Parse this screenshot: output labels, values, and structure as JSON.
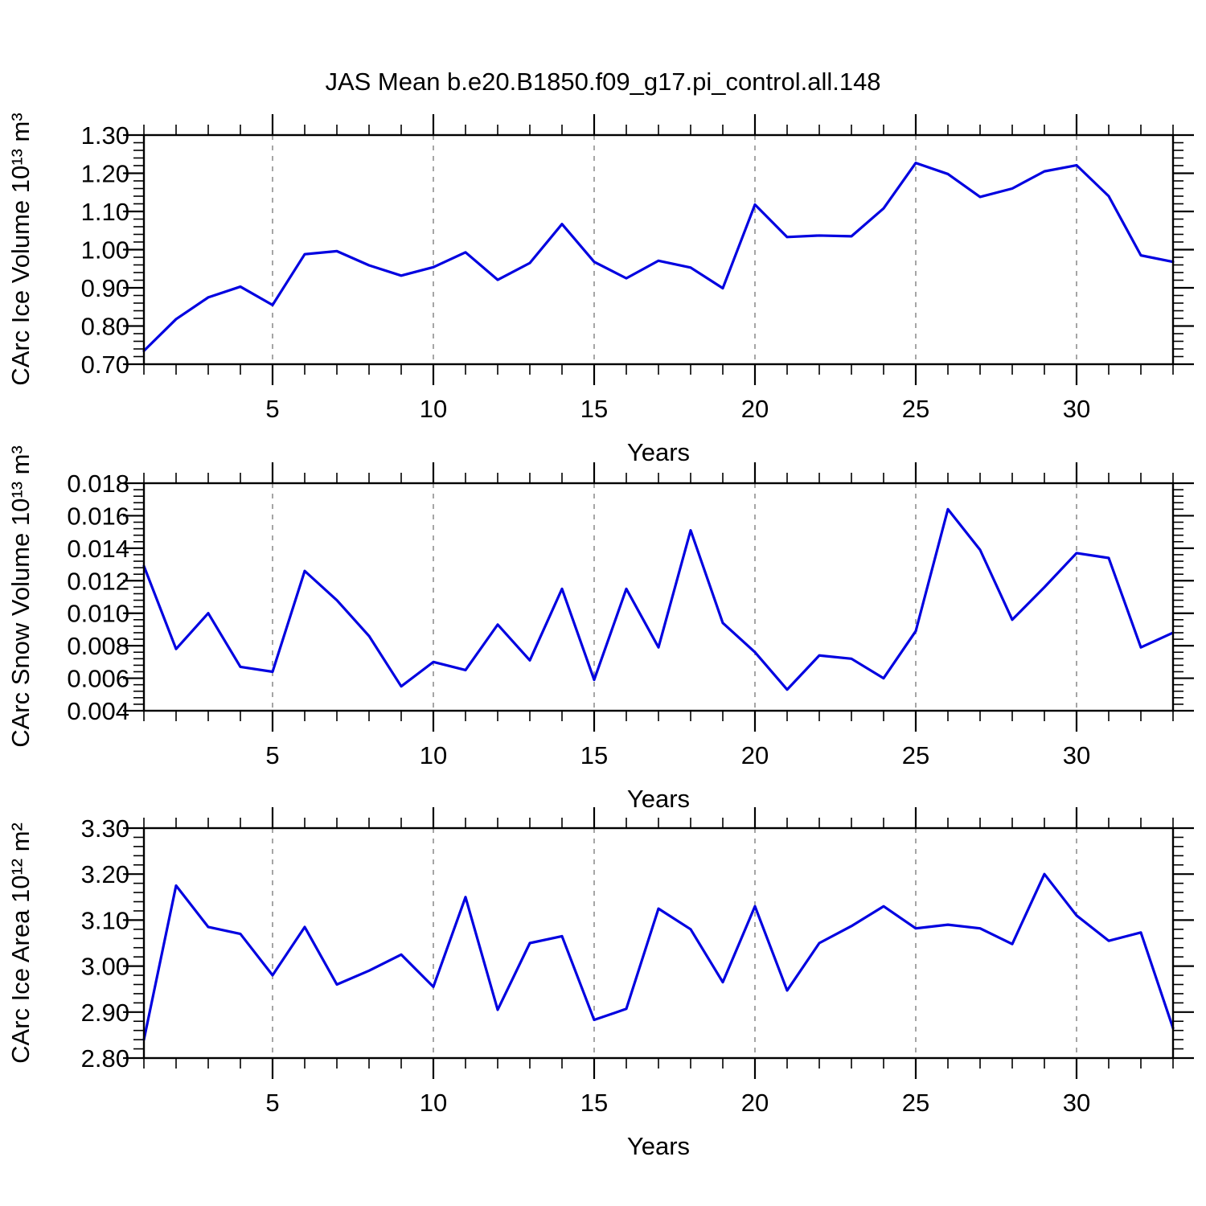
{
  "title": "JAS Mean b.e20.B1850.f09_g17.pi_control.all.148",
  "style": {
    "line_color": "#0000e0",
    "gridline_color": "#7f7f7f",
    "axis_color": "#000000",
    "background": "#ffffff"
  },
  "chart_data": [
    {
      "type": "line",
      "title": "",
      "ylabel": "CArc Ice Volume 10¹³ m³",
      "xlabel": "Years",
      "xlim": [
        1,
        33
      ],
      "ylim": [
        0.7,
        1.3
      ],
      "xticks": [
        5,
        10,
        15,
        20,
        25,
        30
      ],
      "x_minor_step": 1,
      "y_minor_step": 0.02,
      "grid": "vertical-dashed",
      "legend": "none",
      "yticks": {
        "values": [
          1.3,
          1.2,
          1.1,
          1.0,
          0.9,
          0.8,
          0.7
        ],
        "labels": [
          "1.30",
          "1.20",
          "1.10",
          "1.00",
          "0.90",
          "0.80",
          "0.70"
        ]
      },
      "x": [
        1,
        2,
        3,
        4,
        5,
        6,
        7,
        8,
        9,
        10,
        11,
        12,
        13,
        14,
        15,
        16,
        17,
        18,
        19,
        20,
        21,
        22,
        23,
        24,
        25,
        26,
        27,
        28,
        29,
        30,
        31,
        32,
        33
      ],
      "values": [
        0.735,
        0.818,
        0.875,
        0.903,
        0.855,
        0.988,
        0.996,
        0.959,
        0.932,
        0.954,
        0.993,
        0.921,
        0.965,
        1.067,
        0.968,
        0.925,
        0.971,
        0.953,
        0.899,
        1.118,
        1.033,
        1.037,
        1.035,
        1.108,
        1.227,
        1.198,
        1.138,
        1.16,
        1.205,
        1.221,
        1.14,
        0.985,
        0.968
      ]
    },
    {
      "type": "line",
      "title": "",
      "ylabel": "CArc Snow Volume 10¹³ m³",
      "xlabel": "Years",
      "xlim": [
        1,
        33
      ],
      "ylim": [
        0.004,
        0.018
      ],
      "xticks": [
        5,
        10,
        15,
        20,
        25,
        30
      ],
      "x_minor_step": 1,
      "y_minor_step": 0.0004,
      "grid": "vertical-dashed",
      "legend": "none",
      "yticks": {
        "values": [
          0.018,
          0.016,
          0.014,
          0.012,
          0.01,
          0.008,
          0.006,
          0.004
        ],
        "labels": [
          "0.018",
          "0.016",
          "0.014",
          "0.012",
          "0.010",
          "0.008",
          "0.006",
          "0.004"
        ]
      },
      "x": [
        1,
        2,
        3,
        4,
        5,
        6,
        7,
        8,
        9,
        10,
        11,
        12,
        13,
        14,
        15,
        16,
        17,
        18,
        19,
        20,
        21,
        22,
        23,
        24,
        25,
        26,
        27,
        28,
        29,
        30,
        31,
        32,
        33
      ],
      "values": [
        0.0129,
        0.0078,
        0.01,
        0.0067,
        0.0064,
        0.0126,
        0.0108,
        0.0086,
        0.0055,
        0.007,
        0.0065,
        0.0093,
        0.0071,
        0.0115,
        0.0059,
        0.0115,
        0.0079,
        0.0151,
        0.0094,
        0.0076,
        0.0053,
        0.0074,
        0.0072,
        0.006,
        0.0089,
        0.0164,
        0.0139,
        0.0096,
        0.0116,
        0.0137,
        0.0134,
        0.0079,
        0.0088
      ]
    },
    {
      "type": "line",
      "title": "",
      "ylabel": "CArc Ice Area 10¹² m²",
      "xlabel": "Years",
      "xlim": [
        1,
        33
      ],
      "ylim": [
        2.8,
        3.3
      ],
      "xticks": [
        5,
        10,
        15,
        20,
        25,
        30
      ],
      "x_minor_step": 1,
      "y_minor_step": 0.02,
      "grid": "vertical-dashed",
      "legend": "none",
      "yticks": {
        "values": [
          3.3,
          3.2,
          3.1,
          3.0,
          2.9,
          2.8
        ],
        "labels": [
          "3.30",
          "3.20",
          "3.10",
          "3.00",
          "2.90",
          "2.80"
        ]
      },
      "x": [
        1,
        2,
        3,
        4,
        5,
        6,
        7,
        8,
        9,
        10,
        11,
        12,
        13,
        14,
        15,
        16,
        17,
        18,
        19,
        20,
        21,
        22,
        23,
        24,
        25,
        26,
        27,
        28,
        29,
        30,
        31,
        32,
        33
      ],
      "values": [
        2.84,
        3.175,
        3.085,
        3.07,
        2.98,
        3.085,
        2.96,
        2.99,
        3.025,
        2.955,
        3.15,
        2.905,
        3.05,
        3.065,
        2.883,
        2.907,
        3.125,
        3.08,
        2.965,
        3.13,
        2.947,
        3.05,
        3.087,
        3.13,
        3.082,
        3.09,
        3.082,
        3.048,
        3.2,
        3.11,
        3.055,
        3.073,
        2.865
      ]
    }
  ]
}
